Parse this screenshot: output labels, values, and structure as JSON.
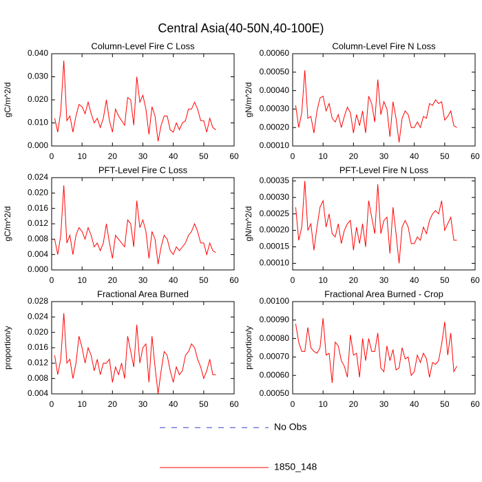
{
  "title": "Central Asia(40-50N,40-100E)",
  "legend": [
    {
      "name": "No Obs",
      "color": "#3333cc",
      "line_style": "dashed"
    },
    {
      "name": "1850_148",
      "color": "#ff0000",
      "line_style": "solid"
    }
  ],
  "chart_data": [
    {
      "type": "line",
      "title": "Column-Level Fire C Loss",
      "ylabel": "gC/m^2/d",
      "x": [
        1,
        2,
        3,
        4,
        5,
        6,
        7,
        8,
        9,
        10,
        11,
        12,
        13,
        14,
        15,
        16,
        17,
        18,
        19,
        20,
        21,
        22,
        23,
        24,
        25,
        26,
        27,
        28,
        29,
        30,
        31,
        32,
        33,
        34,
        35,
        36,
        37,
        38,
        39,
        40,
        41,
        42,
        43,
        44,
        45,
        46,
        47,
        48,
        49,
        50,
        51,
        52,
        53,
        54
      ],
      "series": [
        {
          "color": "#ff0000",
          "values": [
            0.012,
            0.006,
            0.015,
            0.037,
            0.011,
            0.013,
            0.006,
            0.013,
            0.018,
            0.017,
            0.014,
            0.019,
            0.014,
            0.01,
            0.012,
            0.008,
            0.012,
            0.02,
            0.011,
            0.006,
            0.016,
            0.013,
            0.011,
            0.009,
            0.021,
            0.02,
            0.009,
            0.03,
            0.019,
            0.022,
            0.016,
            0.005,
            0.017,
            0.013,
            0.002,
            0.009,
            0.013,
            0.013,
            0.007,
            0.006,
            0.01,
            0.007,
            0.01,
            0.011,
            0.016,
            0.016,
            0.019,
            0.016,
            0.011,
            0.011,
            0.006,
            0.012,
            0.008,
            0.007
          ]
        }
      ],
      "xlim": [
        0,
        60
      ],
      "xticks": [
        0,
        10,
        20,
        30,
        40,
        50,
        60
      ],
      "ylim": [
        0,
        0.04
      ],
      "yticks": [
        {
          "value": 0,
          "label": "0.000"
        },
        {
          "value": 0.01,
          "label": "0.010"
        },
        {
          "value": 0.02,
          "label": "0.020"
        },
        {
          "value": 0.03,
          "label": "0.030"
        },
        {
          "value": 0.04,
          "label": "0.040"
        }
      ]
    },
    {
      "type": "line",
      "title": "Column-Level Fire N Loss",
      "ylabel": "gN/m^2/d",
      "x": [
        1,
        2,
        3,
        4,
        5,
        6,
        7,
        8,
        9,
        10,
        11,
        12,
        13,
        14,
        15,
        16,
        17,
        18,
        19,
        20,
        21,
        22,
        23,
        24,
        25,
        26,
        27,
        28,
        29,
        30,
        31,
        32,
        33,
        34,
        35,
        36,
        37,
        38,
        39,
        40,
        41,
        42,
        43,
        44,
        45,
        46,
        47,
        48,
        49,
        50,
        51,
        52,
        53,
        54
      ],
      "series": [
        {
          "color": "#ff0000",
          "values": [
            0.00032,
            0.0002,
            0.00028,
            0.00051,
            0.00025,
            0.00026,
            0.00017,
            0.00029,
            0.00036,
            0.00037,
            0.00029,
            0.00033,
            0.00025,
            0.00023,
            0.00027,
            0.0002,
            0.00026,
            0.00031,
            0.00028,
            0.00017,
            0.00027,
            0.00021,
            0.00029,
            0.00017,
            0.00037,
            0.00033,
            0.00023,
            0.00046,
            0.00027,
            0.00034,
            0.0003,
            0.00015,
            0.00034,
            0.00025,
            0.00012,
            0.00025,
            0.00029,
            0.00027,
            0.0002,
            0.0002,
            0.00023,
            0.0002,
            0.00026,
            0.00025,
            0.00033,
            0.00032,
            0.00035,
            0.00033,
            0.00034,
            0.00024,
            0.00026,
            0.00029,
            0.00021,
            0.0002
          ]
        }
      ],
      "xlim": [
        0,
        60
      ],
      "xticks": [
        0,
        10,
        20,
        30,
        40,
        50,
        60
      ],
      "ylim": [
        0.0001,
        0.0006
      ],
      "yticks": [
        {
          "value": 0.0001,
          "label": "0.00010"
        },
        {
          "value": 0.0002,
          "label": "0.00020"
        },
        {
          "value": 0.0003,
          "label": "0.00030"
        },
        {
          "value": 0.0004,
          "label": "0.00040"
        },
        {
          "value": 0.0005,
          "label": "0.00050"
        },
        {
          "value": 0.0006,
          "label": "0.00060"
        }
      ]
    },
    {
      "type": "line",
      "title": "PFT-Level Fire C Loss",
      "ylabel": "gC/m^2/d",
      "x": [
        1,
        2,
        3,
        4,
        5,
        6,
        7,
        8,
        9,
        10,
        11,
        12,
        13,
        14,
        15,
        16,
        17,
        18,
        19,
        20,
        21,
        22,
        23,
        24,
        25,
        26,
        27,
        28,
        29,
        30,
        31,
        32,
        33,
        34,
        35,
        36,
        37,
        38,
        39,
        40,
        41,
        42,
        43,
        44,
        45,
        46,
        47,
        48,
        49,
        50,
        51,
        52,
        53,
        54
      ],
      "series": [
        {
          "color": "#ff0000",
          "values": [
            0.008,
            0.004,
            0.009,
            0.022,
            0.007,
            0.009,
            0.004,
            0.009,
            0.011,
            0.01,
            0.008,
            0.011,
            0.009,
            0.006,
            0.007,
            0.005,
            0.007,
            0.012,
            0.007,
            0.003,
            0.009,
            0.008,
            0.007,
            0.006,
            0.013,
            0.012,
            0.006,
            0.018,
            0.011,
            0.013,
            0.01,
            0.003,
            0.01,
            0.008,
            0.0015,
            0.006,
            0.009,
            0.008,
            0.005,
            0.004,
            0.006,
            0.005,
            0.006,
            0.007,
            0.009,
            0.01,
            0.012,
            0.01,
            0.007,
            0.007,
            0.004,
            0.007,
            0.005,
            0.0045
          ]
        }
      ],
      "xlim": [
        0,
        60
      ],
      "xticks": [
        0,
        10,
        20,
        30,
        40,
        50,
        60
      ],
      "ylim": [
        0,
        0.024
      ],
      "yticks": [
        {
          "value": 0,
          "label": "0.000"
        },
        {
          "value": 0.004,
          "label": "0.004"
        },
        {
          "value": 0.008,
          "label": "0.008"
        },
        {
          "value": 0.012,
          "label": "0.012"
        },
        {
          "value": 0.016,
          "label": "0.016"
        },
        {
          "value": 0.02,
          "label": "0.020"
        },
        {
          "value": 0.024,
          "label": "0.024"
        }
      ]
    },
    {
      "type": "line",
      "title": "PFT-Level Fire N Loss",
      "ylabel": "gN/m^2/d",
      "x": [
        1,
        2,
        3,
        4,
        5,
        6,
        7,
        8,
        9,
        10,
        11,
        12,
        13,
        14,
        15,
        16,
        17,
        18,
        19,
        20,
        21,
        22,
        23,
        24,
        25,
        26,
        27,
        28,
        29,
        30,
        31,
        32,
        33,
        34,
        35,
        36,
        37,
        38,
        39,
        40,
        41,
        42,
        43,
        44,
        45,
        46,
        47,
        48,
        49,
        50,
        51,
        52,
        53,
        54
      ],
      "series": [
        {
          "color": "#ff0000",
          "values": [
            0.00027,
            0.00017,
            0.00021,
            0.00035,
            0.0002,
            0.00022,
            0.00014,
            0.00021,
            0.00027,
            0.00029,
            0.00021,
            0.00025,
            0.00019,
            0.00018,
            0.00022,
            0.00016,
            0.0002,
            0.00022,
            0.00023,
            0.00014,
            0.00021,
            0.00016,
            0.00022,
            0.00015,
            0.00029,
            0.00024,
            0.00019,
            0.00034,
            0.00019,
            0.00023,
            0.00024,
            0.00013,
            0.00027,
            0.00019,
            0.0001,
            0.00021,
            0.00023,
            0.00021,
            0.00016,
            0.00016,
            0.00018,
            0.00017,
            0.00021,
            0.00019,
            0.00023,
            0.00025,
            0.00026,
            0.00025,
            0.00029,
            0.0002,
            0.00022,
            0.00024,
            0.00017,
            0.00017
          ]
        }
      ],
      "xlim": [
        0,
        60
      ],
      "xticks": [
        0,
        10,
        20,
        30,
        40,
        50,
        60
      ],
      "ylim": [
        8e-05,
        0.00036
      ],
      "yticks": [
        {
          "value": 0.0001,
          "label": "0.00010"
        },
        {
          "value": 0.00015,
          "label": "0.00015"
        },
        {
          "value": 0.0002,
          "label": "0.00020"
        },
        {
          "value": 0.00025,
          "label": "0.00025"
        },
        {
          "value": 0.0003,
          "label": "0.00030"
        },
        {
          "value": 0.00035,
          "label": "0.00035"
        }
      ]
    },
    {
      "type": "line",
      "title": "Fractional Area Burned",
      "ylabel": "proportion/y",
      "x": [
        1,
        2,
        3,
        4,
        5,
        6,
        7,
        8,
        9,
        10,
        11,
        12,
        13,
        14,
        15,
        16,
        17,
        18,
        19,
        20,
        21,
        22,
        23,
        24,
        25,
        26,
        27,
        28,
        29,
        30,
        31,
        32,
        33,
        34,
        35,
        36,
        37,
        38,
        39,
        40,
        41,
        42,
        43,
        44,
        45,
        46,
        47,
        48,
        49,
        50,
        51,
        52,
        53,
        54
      ],
      "series": [
        {
          "color": "#ff0000",
          "values": [
            0.014,
            0.009,
            0.013,
            0.025,
            0.012,
            0.013,
            0.008,
            0.012,
            0.019,
            0.016,
            0.012,
            0.016,
            0.014,
            0.01,
            0.013,
            0.009,
            0.012,
            0.012,
            0.013,
            0.007,
            0.011,
            0.009,
            0.012,
            0.008,
            0.019,
            0.015,
            0.011,
            0.022,
            0.012,
            0.016,
            0.017,
            0.007,
            0.019,
            0.011,
            0.004,
            0.01,
            0.015,
            0.014,
            0.01,
            0.007,
            0.011,
            0.009,
            0.01,
            0.014,
            0.015,
            0.017,
            0.016,
            0.013,
            0.011,
            0.008,
            0.01,
            0.013,
            0.009,
            0.009
          ]
        }
      ],
      "xlim": [
        0,
        60
      ],
      "xticks": [
        0,
        10,
        20,
        30,
        40,
        50,
        60
      ],
      "ylim": [
        0.004,
        0.028
      ],
      "yticks": [
        {
          "value": 0.004,
          "label": "0.004"
        },
        {
          "value": 0.008,
          "label": "0.008"
        },
        {
          "value": 0.012,
          "label": "0.012"
        },
        {
          "value": 0.016,
          "label": "0.016"
        },
        {
          "value": 0.02,
          "label": "0.020"
        },
        {
          "value": 0.024,
          "label": "0.024"
        },
        {
          "value": 0.028,
          "label": "0.028"
        }
      ]
    },
    {
      "type": "line",
      "title": "Fractional Area Burned - Crop",
      "ylabel": "proportion/y",
      "x": [
        1,
        2,
        3,
        4,
        5,
        6,
        7,
        8,
        9,
        10,
        11,
        12,
        13,
        14,
        15,
        16,
        17,
        18,
        19,
        20,
        21,
        22,
        23,
        24,
        25,
        26,
        27,
        28,
        29,
        30,
        31,
        32,
        33,
        34,
        35,
        36,
        37,
        38,
        39,
        40,
        41,
        42,
        43,
        44,
        45,
        46,
        47,
        48,
        49,
        50,
        51,
        52,
        53,
        54
      ],
      "series": [
        {
          "color": "#ff0000",
          "values": [
            0.00088,
            0.00078,
            0.00073,
            0.00073,
            0.00086,
            0.00075,
            0.00073,
            0.00072,
            0.00075,
            0.00091,
            0.00071,
            0.00072,
            0.00056,
            0.00078,
            0.00076,
            0.00068,
            0.00065,
            0.00059,
            0.00082,
            0.00071,
            0.00072,
            0.00059,
            0.0008,
            0.00068,
            0.0008,
            0.00073,
            0.00073,
            0.00083,
            0.00064,
            0.00062,
            0.00076,
            0.00068,
            0.00074,
            0.00063,
            0.00064,
            0.00075,
            0.00069,
            0.0007,
            0.0006,
            0.00062,
            0.00071,
            0.00067,
            0.00072,
            0.00069,
            0.00059,
            0.00067,
            0.00066,
            0.00068,
            0.00077,
            0.00089,
            0.00071,
            0.00083,
            0.00062,
            0.00065
          ]
        }
      ],
      "xlim": [
        0,
        60
      ],
      "xticks": [
        0,
        10,
        20,
        30,
        40,
        50,
        60
      ],
      "ylim": [
        0.0005,
        0.001
      ],
      "yticks": [
        {
          "value": 0.0005,
          "label": "0.00050"
        },
        {
          "value": 0.0006,
          "label": "0.00060"
        },
        {
          "value": 0.0007,
          "label": "0.00070"
        },
        {
          "value": 0.0008,
          "label": "0.00080"
        },
        {
          "value": 0.0009,
          "label": "0.00090"
        },
        {
          "value": 0.001,
          "label": "0.00100"
        }
      ]
    }
  ]
}
